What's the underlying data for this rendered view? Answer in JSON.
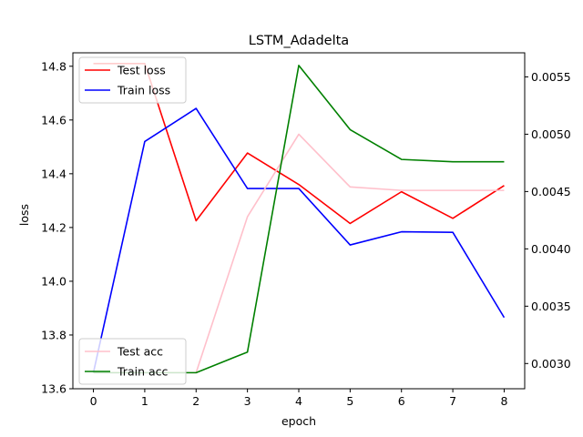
{
  "chart_data": {
    "type": "line",
    "title": "LSTM_Adadelta",
    "xlabel": "epoch",
    "ylabel": "loss",
    "ylabel_right": "",
    "x": [
      0,
      1,
      2,
      3,
      4,
      5,
      6,
      7,
      8
    ],
    "xlim": [
      -0.4,
      8.4
    ],
    "ylim": [
      13.6,
      14.85
    ],
    "ylim_right": [
      0.00278,
      0.00571
    ],
    "xticks": [
      0,
      1,
      2,
      3,
      4,
      5,
      6,
      7,
      8
    ],
    "yticks": [
      13.6,
      13.8,
      14.0,
      14.2,
      14.4,
      14.6,
      14.8
    ],
    "yticks_right": [
      0.003,
      0.0035,
      0.004,
      0.0045,
      0.005,
      0.0055
    ],
    "grid": false,
    "series": [
      {
        "name": "Test loss",
        "axis": "left",
        "color": "#ff0000",
        "values": [
          14.81,
          14.81,
          14.225,
          14.477,
          14.36,
          14.215,
          14.333,
          14.234,
          14.356
        ]
      },
      {
        "name": "Train loss",
        "axis": "left",
        "color": "#0000ff",
        "values": [
          13.66,
          14.52,
          14.643,
          14.345,
          14.345,
          14.135,
          14.184,
          14.182,
          13.865
        ]
      },
      {
        "name": "Test acc",
        "axis": "right",
        "color": "#ffc0cb",
        "values": [
          0.00292,
          0.00292,
          0.00292,
          0.00428,
          0.005,
          0.00454,
          0.00451,
          0.00451,
          0.00451
        ]
      },
      {
        "name": "Train acc",
        "axis": "right",
        "color": "#008000",
        "values": [
          0.00292,
          0.00292,
          0.00292,
          0.0031,
          0.0056,
          0.00504,
          0.00478,
          0.00476,
          0.00476
        ]
      }
    ],
    "legends": [
      {
        "position": "top-left",
        "entries": [
          "Test loss",
          "Train loss"
        ]
      },
      {
        "position": "bottom-left",
        "entries": [
          "Test acc",
          "Train acc"
        ]
      }
    ]
  }
}
